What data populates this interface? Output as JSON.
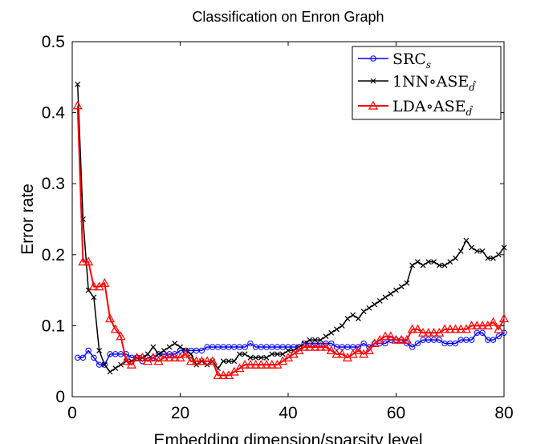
{
  "chart_data": {
    "type": "line",
    "title": "Classification on Enron Graph",
    "xlabel": "Embedding dimension/sparsity level",
    "ylabel": "Error rate",
    "xlim": [
      0,
      80
    ],
    "ylim": [
      0,
      0.5
    ],
    "xticks": [
      0,
      20,
      40,
      60,
      80
    ],
    "yticks": [
      0,
      0.1,
      0.2,
      0.3,
      0.4,
      0.5
    ],
    "xtick_labels": [
      "0",
      "20",
      "40",
      "60",
      "80"
    ],
    "ytick_labels": [
      "0",
      "0.1",
      "0.2",
      "0.3",
      "0.4",
      "0.5"
    ],
    "grid": false,
    "legend_position": "top-right",
    "x": [
      1,
      2,
      3,
      4,
      5,
      6,
      7,
      8,
      9,
      10,
      11,
      12,
      13,
      14,
      15,
      16,
      17,
      18,
      19,
      20,
      21,
      22,
      23,
      24,
      25,
      26,
      27,
      28,
      29,
      30,
      31,
      32,
      33,
      34,
      35,
      36,
      37,
      38,
      39,
      40,
      41,
      42,
      43,
      44,
      45,
      46,
      47,
      48,
      49,
      50,
      51,
      52,
      53,
      54,
      55,
      56,
      57,
      58,
      59,
      60,
      61,
      62,
      63,
      64,
      65,
      66,
      67,
      68,
      69,
      70,
      71,
      72,
      73,
      74,
      75,
      76,
      77,
      78,
      79,
      80
    ],
    "series": [
      {
        "name": "SRC",
        "name_sub": "s",
        "color": "#0000ff",
        "marker": "circle",
        "values": [
          0.055,
          0.055,
          0.065,
          0.055,
          0.045,
          0.045,
          0.06,
          0.06,
          0.06,
          0.06,
          0.055,
          0.055,
          0.05,
          0.055,
          0.055,
          0.06,
          0.06,
          0.06,
          0.06,
          0.065,
          0.065,
          0.065,
          0.065,
          0.065,
          0.07,
          0.07,
          0.07,
          0.07,
          0.07,
          0.07,
          0.07,
          0.07,
          0.075,
          0.07,
          0.07,
          0.07,
          0.07,
          0.07,
          0.07,
          0.07,
          0.07,
          0.07,
          0.075,
          0.075,
          0.075,
          0.075,
          0.075,
          0.075,
          0.07,
          0.07,
          0.07,
          0.07,
          0.07,
          0.075,
          0.07,
          0.075,
          0.075,
          0.075,
          0.08,
          0.08,
          0.08,
          0.075,
          0.07,
          0.075,
          0.08,
          0.08,
          0.08,
          0.08,
          0.075,
          0.075,
          0.075,
          0.08,
          0.08,
          0.08,
          0.09,
          0.09,
          0.08,
          0.08,
          0.085,
          0.09
        ]
      },
      {
        "name": "1NN∘ASE",
        "name_sub": "d̂",
        "color": "#000000",
        "marker": "x",
        "values": [
          0.44,
          0.25,
          0.15,
          0.14,
          0.065,
          0.045,
          0.035,
          0.04,
          0.045,
          0.05,
          0.05,
          0.055,
          0.055,
          0.06,
          0.07,
          0.06,
          0.065,
          0.07,
          0.075,
          0.07,
          0.065,
          0.06,
          0.045,
          0.05,
          0.045,
          0.05,
          0.04,
          0.05,
          0.05,
          0.05,
          0.06,
          0.06,
          0.055,
          0.055,
          0.055,
          0.055,
          0.06,
          0.06,
          0.06,
          0.065,
          0.065,
          0.07,
          0.075,
          0.08,
          0.08,
          0.08,
          0.085,
          0.09,
          0.095,
          0.1,
          0.11,
          0.115,
          0.11,
          0.12,
          0.125,
          0.13,
          0.135,
          0.14,
          0.145,
          0.15,
          0.155,
          0.16,
          0.185,
          0.19,
          0.185,
          0.19,
          0.19,
          0.185,
          0.185,
          0.19,
          0.195,
          0.205,
          0.22,
          0.21,
          0.205,
          0.205,
          0.195,
          0.195,
          0.2,
          0.21
        ]
      },
      {
        "name": "LDA∘ASE",
        "name_sub": "d̂",
        "color": "#ff0000",
        "marker": "triangle",
        "values": [
          0.41,
          0.19,
          0.19,
          0.155,
          0.155,
          0.16,
          0.11,
          0.095,
          0.085,
          0.05,
          0.045,
          0.055,
          0.055,
          0.05,
          0.055,
          0.05,
          0.055,
          0.055,
          0.055,
          0.055,
          0.06,
          0.05,
          0.05,
          0.05,
          0.05,
          0.05,
          0.03,
          0.03,
          0.03,
          0.035,
          0.04,
          0.045,
          0.045,
          0.045,
          0.045,
          0.045,
          0.045,
          0.045,
          0.05,
          0.055,
          0.06,
          0.065,
          0.07,
          0.07,
          0.07,
          0.07,
          0.07,
          0.065,
          0.06,
          0.06,
          0.055,
          0.06,
          0.065,
          0.06,
          0.065,
          0.075,
          0.08,
          0.085,
          0.085,
          0.08,
          0.08,
          0.08,
          0.095,
          0.095,
          0.09,
          0.09,
          0.09,
          0.09,
          0.095,
          0.095,
          0.095,
          0.095,
          0.095,
          0.1,
          0.1,
          0.1,
          0.1,
          0.105,
          0.095,
          0.11
        ]
      }
    ]
  }
}
